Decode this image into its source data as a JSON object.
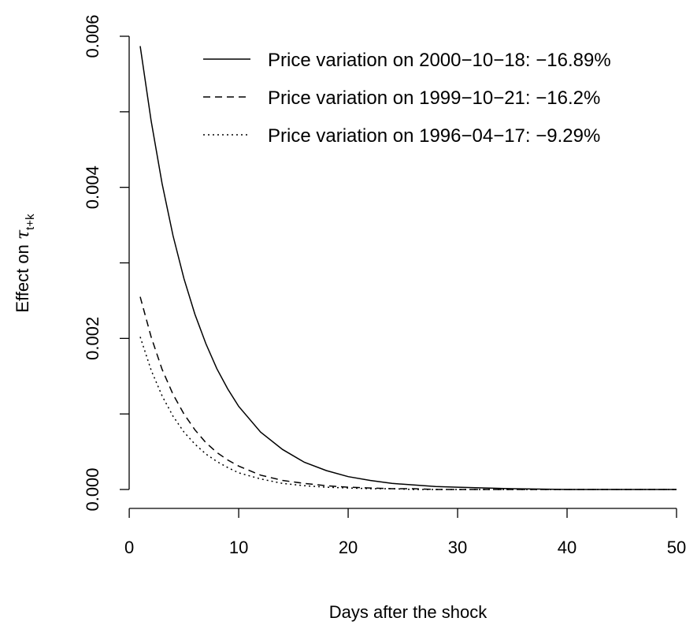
{
  "chart_data": {
    "type": "line",
    "title": "",
    "xlabel": "Days after the shock",
    "ylabel_prefix": "Effect on ",
    "ylabel_symbol": "τ",
    "ylabel_subscript": "t+k",
    "xlim": [
      1,
      50
    ],
    "ylim": [
      0,
      0.006
    ],
    "x_ticks": [
      0,
      10,
      20,
      30,
      40,
      50
    ],
    "x_tick_labels": [
      "0",
      "10",
      "20",
      "30",
      "40",
      "50"
    ],
    "y_ticks": [
      0,
      0.001,
      0.002,
      0.003,
      0.004,
      0.005,
      0.006
    ],
    "y_tick_labels": [
      "0.000",
      "",
      "0.002",
      "",
      "0.004",
      "",
      "0.006"
    ],
    "grid": false,
    "legend_position": "top-right",
    "x": [
      1,
      2,
      3,
      4,
      5,
      6,
      7,
      8,
      9,
      10,
      12,
      14,
      16,
      18,
      20,
      22,
      24,
      26,
      28,
      30,
      35,
      40,
      45,
      50
    ],
    "series": [
      {
        "name": "Price variation on 2000−10−18: −16.89%",
        "line_style": "solid",
        "color": "#000000",
        "values": [
          0.00587,
          0.00488,
          0.00405,
          0.00336,
          0.00279,
          0.00232,
          0.00193,
          0.0016,
          0.00133,
          0.0011,
          0.00076,
          0.00053,
          0.00036,
          0.00025,
          0.00017,
          0.00012,
          8e-05,
          6e-05,
          4e-05,
          3e-05,
          1e-05,
          0.0,
          0.0,
          0.0
        ]
      },
      {
        "name": "Price variation on 1999−10−21: −16.2%",
        "line_style": "dashed",
        "color": "#000000",
        "values": [
          0.00255,
          0.00202,
          0.00159,
          0.00126,
          0.001,
          0.00079,
          0.00062,
          0.00049,
          0.00039,
          0.00031,
          0.00019,
          0.00012,
          8e-05,
          5e-05,
          3e-05,
          2e-05,
          1e-05,
          1e-05,
          0.0,
          0.0,
          0.0,
          0.0,
          0.0,
          0.0
        ]
      },
      {
        "name": "Price variation on 1996−04−17: −9.29%",
        "line_style": "dotted",
        "color": "#000000",
        "values": [
          0.00202,
          0.00158,
          0.00124,
          0.00097,
          0.00076,
          0.0006,
          0.00047,
          0.00037,
          0.00029,
          0.00022,
          0.00014,
          8e-05,
          5e-05,
          3e-05,
          2e-05,
          1e-05,
          1e-05,
          0.0,
          0.0,
          0.0,
          0.0,
          0.0,
          0.0,
          0.0
        ]
      }
    ]
  }
}
